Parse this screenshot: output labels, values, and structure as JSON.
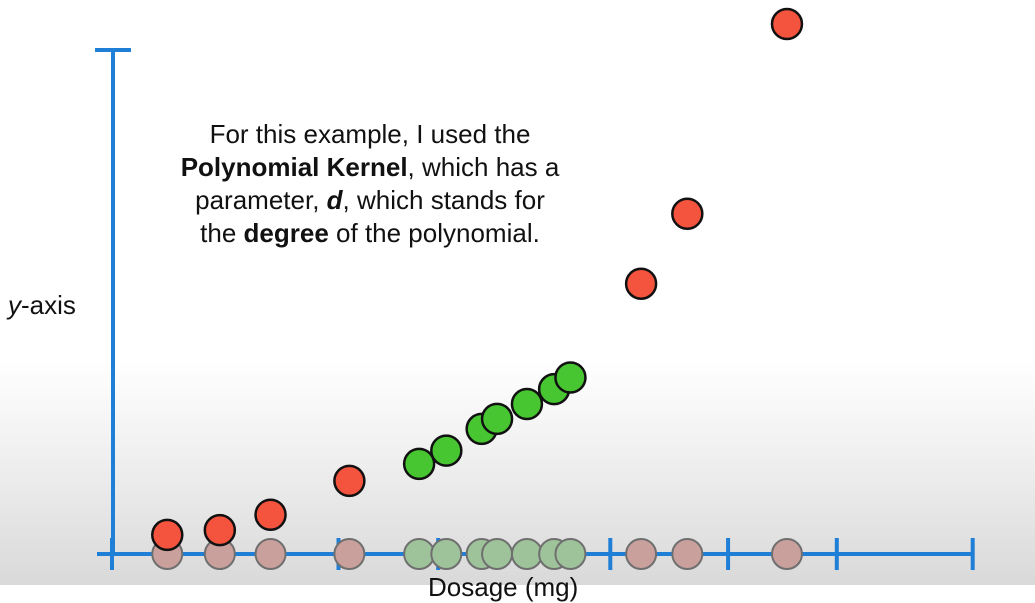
{
  "caption": {
    "line1": "For this example, I used the",
    "line2_bold": "Polynomial Kernel",
    "line2_rest": ", which has a",
    "line3_pre": "parameter, ",
    "line3_param": "d",
    "line3_post": ", which stands for",
    "line4_pre": "the ",
    "line4_bold": "degree",
    "line4_post": " of the polynomial."
  },
  "y_label": {
    "var": "y",
    "rest": "-axis"
  },
  "x_label_text": "Dosage (mg)",
  "chart_data": {
    "type": "scatter",
    "title": "",
    "xlabel": "Dosage (mg)",
    "ylabel": "y-axis",
    "xlim": [
      0,
      100
    ],
    "ylim": [
      0,
      100
    ],
    "x_thresholds": [
      25,
      68
    ],
    "axis_tick_x": [
      0,
      12,
      25,
      36,
      55,
      68,
      80,
      95
    ],
    "grid": false,
    "colors": {
      "axis": "#1f7fd6",
      "red": "#f4533d",
      "green": "#47c631",
      "red_dim": "#c9a09c",
      "green_dim": "#9ec39a"
    },
    "points_2d": [
      {
        "x": 6.1,
        "y": 3.6,
        "class": "red"
      },
      {
        "x": 11.9,
        "y": 4.5,
        "class": "red"
      },
      {
        "x": 17.5,
        "y": 7.4,
        "class": "red"
      },
      {
        "x": 26.2,
        "y": 13.8,
        "class": "red"
      },
      {
        "x": 33.9,
        "y": 17.0,
        "class": "green"
      },
      {
        "x": 36.9,
        "y": 19.5,
        "class": "green"
      },
      {
        "x": 40.8,
        "y": 23.6,
        "class": "green"
      },
      {
        "x": 42.5,
        "y": 25.5,
        "class": "green"
      },
      {
        "x": 45.8,
        "y": 28.3,
        "class": "green"
      },
      {
        "x": 48.8,
        "y": 31.1,
        "class": "green"
      },
      {
        "x": 50.6,
        "y": 33.3,
        "class": "green"
      },
      {
        "x": 58.4,
        "y": 51.0,
        "class": "red"
      },
      {
        "x": 63.5,
        "y": 64.2,
        "class": "red"
      },
      {
        "x": 74.5,
        "y": 100.0,
        "class": "red"
      }
    ]
  }
}
